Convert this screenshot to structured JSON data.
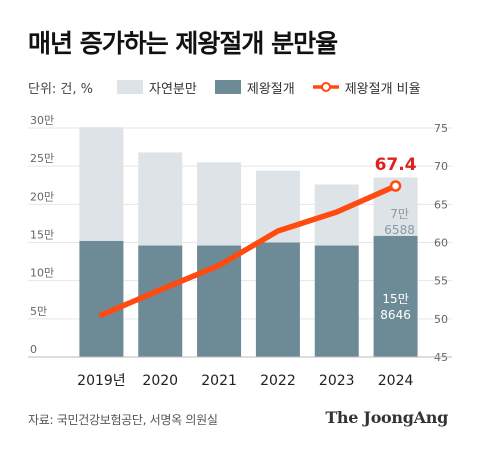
{
  "title": "매년 증가하는 제왕절개 분만율",
  "legend": {
    "unit": "단위: 건, %",
    "natural": "자연분만",
    "cesarean": "제왕절개",
    "rate": "제왕절개 비율"
  },
  "colors": {
    "natural": "#dde3e7",
    "cesarean": "#6c8b97",
    "rate": "#ff4a10",
    "rate_label": "#e02020",
    "label_dark": "#8a9aa4",
    "label_light": "#ffffff"
  },
  "source": "자료: 국민건강보험공단, 서명옥 의원실",
  "brand": "The JoongAng",
  "annotations": {
    "rate_2024": "67.4",
    "natural_2024_line1": "7만",
    "natural_2024_line2": "6588",
    "cesarean_2024_line1": "15만",
    "cesarean_2024_line2": "8646"
  },
  "chart_data": {
    "type": "bar",
    "stacked": true,
    "categories": [
      "2019년",
      "2020",
      "2021",
      "2022",
      "2023",
      "2024"
    ],
    "series": [
      {
        "name": "제왕절개",
        "axis": "left",
        "values": [
          152000,
          146000,
          146000,
          150000,
          146000,
          158646
        ]
      },
      {
        "name": "자연분만",
        "axis": "left",
        "values": [
          149000,
          122000,
          109000,
          94000,
          80000,
          76588
        ]
      },
      {
        "name": "제왕절개 비율",
        "type": "line",
        "axis": "right",
        "values": [
          50.5,
          53.8,
          57.0,
          61.5,
          64.0,
          67.4
        ]
      }
    ],
    "y_left": {
      "ticks": [
        "0",
        "5만",
        "10만",
        "15만",
        "20만",
        "25만",
        "30만"
      ],
      "range": [
        0,
        300000
      ]
    },
    "y_right": {
      "ticks": [
        "45",
        "50",
        "55",
        "60",
        "65",
        "70",
        "75"
      ],
      "range": [
        45,
        75
      ]
    },
    "grid": true,
    "legend_position": "top-left"
  }
}
